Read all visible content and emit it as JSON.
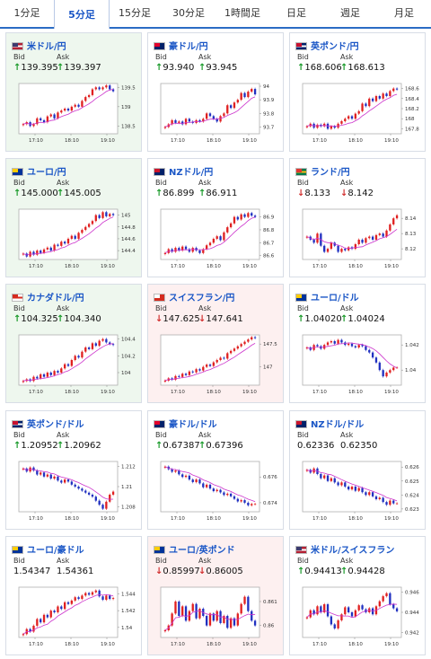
{
  "tabs": [
    {
      "label": "1分足",
      "active": false
    },
    {
      "label": "5分足",
      "active": true
    },
    {
      "label": "15分足",
      "active": false
    },
    {
      "label": "30分足",
      "active": false
    },
    {
      "label": "1時間足",
      "active": false
    },
    {
      "label": "日足",
      "active": false
    },
    {
      "label": "週足",
      "active": false
    },
    {
      "label": "月足",
      "active": false
    }
  ],
  "labels": {
    "bid": "Bid",
    "ask": "Ask"
  },
  "colors": {
    "up": "#e02020",
    "down": "#2030c0",
    "ma": "#cc33cc",
    "up_arrow": "#1a9a2a",
    "down_arrow": "#d23030"
  },
  "cards": [
    {
      "name": "米ドル/円",
      "flag": "us-flag-icon",
      "trend": "up",
      "bid": "139.395",
      "ask": "139.397",
      "bid_dir": "up",
      "ask_dir": "up",
      "chart_data": {
        "type": "candlestick",
        "x_ticks": [
          "17:10",
          "18:10",
          "19:10"
        ],
        "y_ticks": [
          "138.5",
          "139",
          "139.5"
        ],
        "ylim": [
          138.3,
          139.6
        ],
        "series": [
          138.55,
          138.6,
          138.5,
          138.55,
          138.7,
          138.65,
          138.6,
          138.75,
          138.8,
          138.7,
          138.85,
          138.9,
          138.95,
          138.9,
          139.0,
          139.05,
          139.0,
          139.15,
          139.25,
          139.3,
          139.45,
          139.5,
          139.45,
          139.5,
          139.55,
          139.45,
          139.4
        ]
      }
    },
    {
      "name": "豪ドル/円",
      "flag": "au-flag-icon",
      "trend": "neutral",
      "bid": "93.940",
      "ask": "93.945",
      "bid_dir": "up",
      "ask_dir": "up",
      "chart_data": {
        "type": "candlestick",
        "x_ticks": [
          "17:10",
          "18:10",
          "19:10"
        ],
        "y_ticks": [
          "93.7",
          "93.8",
          "93.9",
          "94"
        ],
        "ylim": [
          93.65,
          94.02
        ],
        "series": [
          93.7,
          93.72,
          93.75,
          93.73,
          93.74,
          93.72,
          93.76,
          93.74,
          93.73,
          93.75,
          93.74,
          93.76,
          93.8,
          93.78,
          93.76,
          93.74,
          93.78,
          93.8,
          93.86,
          93.84,
          93.88,
          93.9,
          93.95,
          93.92,
          93.96,
          93.98,
          93.94
        ]
      }
    },
    {
      "name": "英ポンド/円",
      "flag": "gb-flag-icon",
      "trend": "neutral",
      "bid": "168.606",
      "ask": "168.613",
      "bid_dir": "up",
      "ask_dir": "up",
      "chart_data": {
        "type": "candlestick",
        "x_ticks": [
          "17:10",
          "18:10",
          "19:10"
        ],
        "y_ticks": [
          "167.8",
          "168",
          "168.2",
          "168.4",
          "168.6"
        ],
        "ylim": [
          167.7,
          168.7
        ],
        "series": [
          167.85,
          167.9,
          167.82,
          167.88,
          167.85,
          167.9,
          167.8,
          167.85,
          167.82,
          167.9,
          167.95,
          168.0,
          168.05,
          168.0,
          168.1,
          168.15,
          168.3,
          168.25,
          168.4,
          168.35,
          168.45,
          168.4,
          168.5,
          168.45,
          168.55,
          168.6,
          168.58
        ]
      }
    },
    {
      "name": "ユーロ/円",
      "flag": "eu-flag-icon",
      "trend": "up",
      "bid": "145.000",
      "ask": "145.005",
      "bid_dir": "up",
      "ask_dir": "up",
      "chart_data": {
        "type": "candlestick",
        "x_ticks": [
          "17:10",
          "18:10",
          "19:10"
        ],
        "y_ticks": [
          "144.4",
          "144.6",
          "144.8",
          "145"
        ],
        "ylim": [
          144.25,
          145.1
        ],
        "series": [
          144.35,
          144.3,
          144.38,
          144.33,
          144.4,
          144.36,
          144.42,
          144.45,
          144.4,
          144.5,
          144.48,
          144.55,
          144.52,
          144.6,
          144.65,
          144.6,
          144.7,
          144.75,
          144.8,
          144.85,
          144.9,
          145.0,
          144.95,
          145.05,
          144.98,
          145.02,
          145.0
        ]
      }
    },
    {
      "name": "NZドル/円",
      "flag": "nz-flag-icon",
      "trend": "neutral",
      "bid": "86.899",
      "ask": "86.911",
      "bid_dir": "up",
      "ask_dir": "up",
      "chart_data": {
        "type": "candlestick",
        "x_ticks": [
          "17:10",
          "18:10",
          "19:10"
        ],
        "y_ticks": [
          "86.6",
          "86.7",
          "86.8",
          "86.9"
        ],
        "ylim": [
          86.57,
          86.96
        ],
        "series": [
          86.62,
          86.65,
          86.63,
          86.66,
          86.64,
          86.67,
          86.65,
          86.63,
          86.66,
          86.64,
          86.62,
          86.65,
          86.68,
          86.7,
          86.73,
          86.75,
          86.72,
          86.78,
          86.82,
          86.85,
          86.9,
          86.88,
          86.92,
          86.9,
          86.93,
          86.91,
          86.9
        ]
      }
    },
    {
      "name": "ランド/円",
      "flag": "za-flag-icon",
      "trend": "neutral",
      "bid": "8.133",
      "ask": "8.142",
      "bid_dir": "down",
      "ask_dir": "down",
      "chart_data": {
        "type": "candlestick",
        "x_ticks": [
          "17:10",
          "18:10",
          "19:10"
        ],
        "y_ticks": [
          "8.12",
          "8.13",
          "8.14"
        ],
        "ylim": [
          8.113,
          8.146
        ],
        "series": [
          8.128,
          8.126,
          8.124,
          8.13,
          8.122,
          8.118,
          8.12,
          8.124,
          8.122,
          8.118,
          8.12,
          8.119,
          8.121,
          8.12,
          8.123,
          8.126,
          8.124,
          8.127,
          8.128,
          8.126,
          8.129,
          8.13,
          8.128,
          8.132,
          8.136,
          8.14,
          8.142
        ]
      }
    },
    {
      "name": "カナダドル/円",
      "flag": "ca-flag-icon",
      "trend": "up",
      "bid": "104.325",
      "ask": "104.340",
      "bid_dir": "up",
      "ask_dir": "up",
      "chart_data": {
        "type": "candlestick",
        "x_ticks": [
          "17:10",
          "18:10",
          "19:10"
        ],
        "y_ticks": [
          "104",
          "104.2",
          "104.4"
        ],
        "ylim": [
          103.85,
          104.45
        ],
        "series": [
          103.9,
          103.92,
          103.9,
          103.95,
          103.93,
          103.98,
          103.95,
          104.0,
          103.97,
          104.02,
          104.0,
          104.05,
          104.1,
          104.08,
          104.15,
          104.2,
          104.18,
          104.25,
          104.3,
          104.28,
          104.35,
          104.32,
          104.38,
          104.4,
          104.36,
          104.34,
          104.33
        ]
      }
    },
    {
      "name": "スイスフラン/円",
      "flag": "ch-flag-icon",
      "trend": "down",
      "bid": "147.625",
      "ask": "147.641",
      "bid_dir": "down",
      "ask_dir": "down",
      "chart_data": {
        "type": "candlestick",
        "x_ticks": [
          "17:10",
          "18:10",
          "19:10"
        ],
        "y_ticks": [
          "147",
          "147.5"
        ],
        "ylim": [
          146.6,
          147.7
        ],
        "series": [
          146.7,
          146.75,
          146.72,
          146.8,
          146.78,
          146.85,
          146.82,
          146.9,
          146.88,
          146.95,
          146.92,
          147.0,
          147.05,
          147.02,
          147.1,
          147.15,
          147.2,
          147.18,
          147.3,
          147.35,
          147.4,
          147.45,
          147.5,
          147.55,
          147.6,
          147.65,
          147.63
        ]
      }
    },
    {
      "name": "ユーロ/ドル",
      "flag": "eu-us-flag-icon",
      "trend": "neutral",
      "bid": "1.04020",
      "ask": "1.04024",
      "bid_dir": "up",
      "ask_dir": "up",
      "chart_data": {
        "type": "candlestick",
        "x_ticks": [
          "17:10",
          "18:10",
          "19:10"
        ],
        "y_ticks": [
          "1.04",
          "1.042"
        ],
        "ylim": [
          1.0388,
          1.0428
        ],
        "series": [
          1.0418,
          1.0416,
          1.042,
          1.0419,
          1.0417,
          1.042,
          1.0422,
          1.0423,
          1.0421,
          1.0424,
          1.0422,
          1.042,
          1.0421,
          1.0419,
          1.0418,
          1.042,
          1.0419,
          1.0416,
          1.0414,
          1.041,
          1.0406,
          1.04,
          1.0395,
          1.0398,
          1.04,
          1.0402,
          1.0402
        ]
      }
    },
    {
      "name": "英ポンド/ドル",
      "flag": "gb-us-flag-icon",
      "trend": "neutral",
      "bid": "1.20952",
      "ask": "1.20962",
      "bid_dir": "up",
      "ask_dir": "up",
      "chart_data": {
        "type": "candlestick",
        "x_ticks": [
          "17:10",
          "18:10",
          "19:10"
        ],
        "y_ticks": [
          "1.208",
          "1.21",
          "1.212"
        ],
        "ylim": [
          1.2075,
          1.2125
        ],
        "series": [
          1.2118,
          1.2115,
          1.2119,
          1.2116,
          1.2112,
          1.2114,
          1.211,
          1.2112,
          1.2108,
          1.211,
          1.2106,
          1.2104,
          1.2107,
          1.2105,
          1.2102,
          1.21,
          1.2098,
          1.2096,
          1.2094,
          1.2092,
          1.209,
          1.2086,
          1.2082,
          1.2078,
          1.2085,
          1.2092,
          1.2095
        ]
      }
    },
    {
      "name": "豪ドル/ドル",
      "flag": "au-us-flag-icon",
      "trend": "neutral",
      "bid": "0.67387",
      "ask": "0.67396",
      "bid_dir": "up",
      "ask_dir": "up",
      "chart_data": {
        "type": "candlestick",
        "x_ticks": [
          "17:10",
          "18:10",
          "19:10"
        ],
        "y_ticks": [
          "0.674",
          "0.676"
        ],
        "ylim": [
          0.6733,
          0.6772
        ],
        "series": [
          0.6768,
          0.6766,
          0.6764,
          0.6765,
          0.6762,
          0.676,
          0.6761,
          0.6758,
          0.6756,
          0.6758,
          0.6755,
          0.6752,
          0.6754,
          0.6751,
          0.6749,
          0.675,
          0.6748,
          0.6746,
          0.6747,
          0.6745,
          0.6743,
          0.6741,
          0.6742,
          0.674,
          0.6738,
          0.6739,
          0.6739
        ]
      }
    },
    {
      "name": "NZドル/ドル",
      "flag": "nz-us-flag-icon",
      "trend": "neutral",
      "bid": "0.62336",
      "ask": "0.62350",
      "bid_dir": "none",
      "ask_dir": "none",
      "chart_data": {
        "type": "candlestick",
        "x_ticks": [
          "17:10",
          "18:10",
          "19:10"
        ],
        "y_ticks": [
          "0.623",
          "0.624",
          "0.625",
          "0.626"
        ],
        "ylim": [
          0.6228,
          0.6264
        ],
        "series": [
          0.6258,
          0.6256,
          0.6259,
          0.6255,
          0.6252,
          0.6254,
          0.625,
          0.6252,
          0.6249,
          0.6247,
          0.6249,
          0.6246,
          0.6244,
          0.6246,
          0.6243,
          0.6245,
          0.6242,
          0.624,
          0.6242,
          0.6239,
          0.6237,
          0.6238,
          0.6235,
          0.6233,
          0.6236,
          0.6234,
          0.6234
        ]
      }
    },
    {
      "name": "ユーロ/豪ドル",
      "flag": "eu-au-flag-icon",
      "trend": "neutral",
      "bid": "1.54347",
      "ask": "1.54361",
      "bid_dir": "none",
      "ask_dir": "none",
      "chart_data": {
        "type": "candlestick",
        "x_ticks": [
          "17:10",
          "18:10",
          "19:10"
        ],
        "y_ticks": [
          "1.54",
          "1.542",
          "1.544"
        ],
        "ylim": [
          1.5388,
          1.5448
        ],
        "series": [
          1.5392,
          1.5398,
          1.5395,
          1.5402,
          1.541,
          1.5406,
          1.5415,
          1.5412,
          1.542,
          1.5418,
          1.5425,
          1.5422,
          1.543,
          1.5428,
          1.5432,
          1.5436,
          1.5434,
          1.5438,
          1.5441,
          1.5439,
          1.5442,
          1.5444,
          1.5437,
          1.5433,
          1.5438,
          1.5434,
          1.5435
        ]
      }
    },
    {
      "name": "ユーロ/英ポンド",
      "flag": "eu-gb-flag-icon",
      "trend": "down",
      "bid": "0.85997",
      "ask": "0.86005",
      "bid_dir": "down",
      "ask_dir": "down",
      "chart_data": {
        "type": "candlestick",
        "x_ticks": [
          "17:10",
          "18:10",
          "19:10"
        ],
        "y_ticks": [
          "0.86",
          "0.861"
        ],
        "ylim": [
          0.8595,
          0.8616
        ],
        "series": [
          0.8598,
          0.86,
          0.8605,
          0.861,
          0.8604,
          0.8608,
          0.8602,
          0.8606,
          0.8609,
          0.8603,
          0.8607,
          0.8604,
          0.86,
          0.8605,
          0.8602,
          0.8606,
          0.8601,
          0.8604,
          0.8599,
          0.8603,
          0.86,
          0.8605,
          0.8609,
          0.8612,
          0.8606,
          0.8602,
          0.86
        ]
      }
    },
    {
      "name": "米ドル/スイスフラン",
      "flag": "us-ch-flag-icon",
      "trend": "neutral",
      "bid": "0.94413",
      "ask": "0.94428",
      "bid_dir": "up",
      "ask_dir": "up",
      "chart_data": {
        "type": "candlestick",
        "x_ticks": [
          "17:10",
          "18:10",
          "19:10"
        ],
        "y_ticks": [
          "0.942",
          "0.944",
          "0.946"
        ],
        "ylim": [
          0.9415,
          0.9465
        ],
        "series": [
          0.9435,
          0.9442,
          0.9438,
          0.9446,
          0.944,
          0.9448,
          0.9436,
          0.9428,
          0.9424,
          0.9432,
          0.9438,
          0.9445,
          0.944,
          0.9436,
          0.9442,
          0.9447,
          0.9443,
          0.944,
          0.9444,
          0.9438,
          0.9446,
          0.9451,
          0.9456,
          0.9459,
          0.9448,
          0.9444,
          0.9441
        ]
      }
    }
  ]
}
